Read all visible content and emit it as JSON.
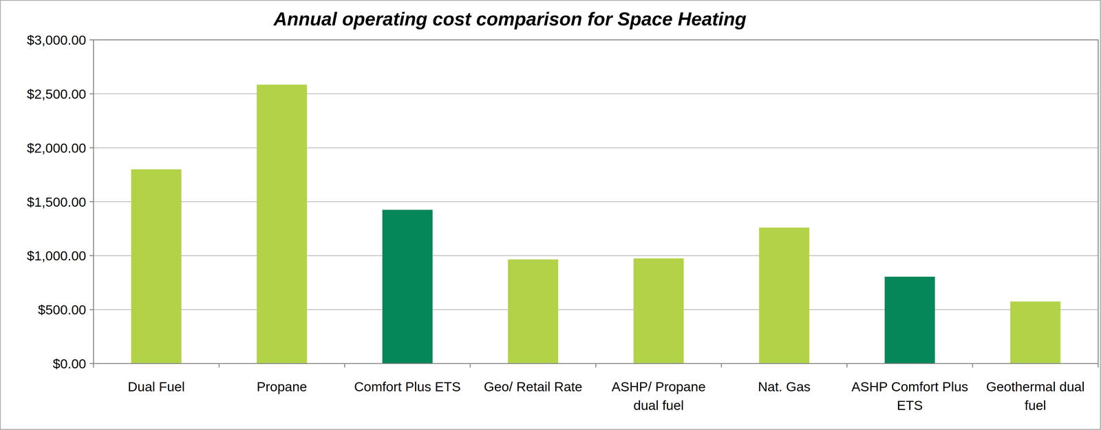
{
  "chart_data": {
    "type": "bar",
    "title": "Annual operating cost comparison for Space Heating",
    "categories": [
      "Dual Fuel",
      "Propane",
      "Comfort Plus ETS",
      "Geo/ Retail Rate",
      "ASHP/ Propane dual fuel",
      "Nat. Gas",
      "ASHP Comfort Plus ETS",
      "Geothermal dual fuel"
    ],
    "values": [
      1800,
      2585,
      1425,
      965,
      975,
      1260,
      805,
      575
    ],
    "colors": [
      "#b2d348",
      "#b2d348",
      "#058759",
      "#b2d348",
      "#b2d348",
      "#b2d348",
      "#058759",
      "#b2d348"
    ],
    "ylim": [
      0,
      3000
    ],
    "yticks": [
      {
        "value": 0,
        "label": "$0.00"
      },
      {
        "value": 500,
        "label": "$500.00"
      },
      {
        "value": 1000,
        "label": "$1,000.00"
      },
      {
        "value": 1500,
        "label": "$1,500.00"
      },
      {
        "value": 2000,
        "label": "$2,000.00"
      },
      {
        "value": 2500,
        "label": "$2,500.00"
      },
      {
        "value": 3000,
        "label": "$3,000.00"
      }
    ],
    "grid": true
  }
}
